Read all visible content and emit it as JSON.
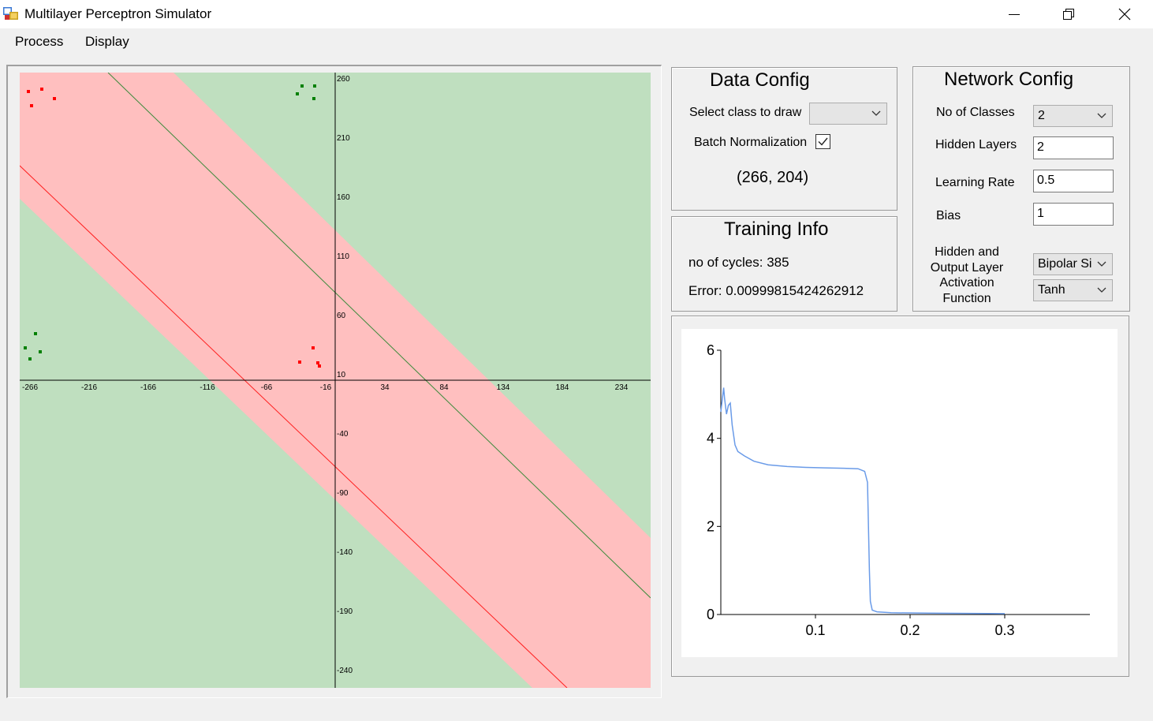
{
  "window": {
    "title": "Multilayer Perceptron Simulator"
  },
  "menu": {
    "items": [
      "Process",
      "Display"
    ]
  },
  "plot": {
    "x_ticks": [
      "-266",
      "-216",
      "-166",
      "-116",
      "-66",
      "-16",
      "34",
      "84",
      "134",
      "184",
      "234"
    ],
    "y_ticks": [
      "260",
      "210",
      "160",
      "110",
      "60",
      "10",
      "-40",
      "-90",
      "-140",
      "-190",
      "-240"
    ],
    "colors": {
      "class_a_region": "#ffbfbf",
      "class_b_region": "#bfdfbf",
      "class_a_point": "#ff0000",
      "class_b_point": "#008000"
    }
  },
  "data_config": {
    "title": "Data Config",
    "select_class_label": "Select class to draw",
    "select_class_value": "",
    "batch_norm_label": "Batch Normalization",
    "batch_norm_checked": true,
    "coordinates": "(266, 204)"
  },
  "training_info": {
    "title": "Training Info",
    "cycles_text": "no of cycles: 385",
    "error_text": "Error: 0.00999815424262912"
  },
  "network_config": {
    "title": "Network Config",
    "classes_label": "No of Classes",
    "classes_value": "2",
    "hidden_layers_label": "Hidden Layers",
    "hidden_layers_value": "2",
    "learning_rate_label": "Learning Rate",
    "learning_rate_value": "0.5",
    "bias_label": "Bias",
    "bias_value": "1",
    "activation_label_lines": [
      "Hidden and",
      "Output Layer",
      "Activation",
      "Function"
    ],
    "hidden_activation_value": "Bipolar Si",
    "output_activation_value": "Tanh"
  },
  "chart_data": {
    "type": "line",
    "x_ticks": [
      "0.1",
      "0.2",
      "0.3"
    ],
    "y_ticks": [
      "0",
      "2",
      "4",
      "6"
    ],
    "xlim": [
      0,
      0.39
    ],
    "ylim": [
      0,
      6
    ],
    "line_color": "#6a9be8",
    "series": [
      {
        "x": [
          0.0,
          0.003,
          0.004,
          0.006,
          0.008,
          0.01,
          0.012,
          0.015,
          0.018,
          0.025,
          0.035,
          0.05,
          0.07,
          0.09,
          0.11,
          0.13,
          0.145,
          0.152,
          0.155,
          0.156,
          0.157,
          0.158,
          0.16,
          0.165,
          0.18,
          0.22,
          0.3
        ],
        "y": [
          4.6,
          5.15,
          4.9,
          4.55,
          4.75,
          4.8,
          4.3,
          3.85,
          3.7,
          3.6,
          3.48,
          3.4,
          3.36,
          3.34,
          3.33,
          3.32,
          3.31,
          3.25,
          3.0,
          2.0,
          1.0,
          0.3,
          0.1,
          0.06,
          0.04,
          0.03,
          0.02
        ]
      }
    ]
  }
}
